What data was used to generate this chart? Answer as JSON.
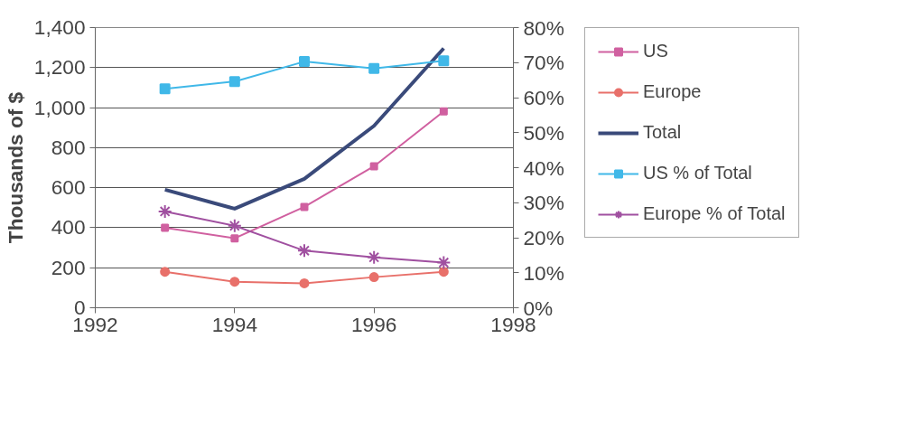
{
  "chart_data": {
    "type": "line",
    "ylabel": "Thousands of $",
    "x": [
      1993,
      1994,
      1995,
      1996,
      1997
    ],
    "xlim": [
      1992,
      1998
    ],
    "xticks": [
      1992,
      1994,
      1996,
      1998
    ],
    "ylim": [
      0,
      1400
    ],
    "yticks": [
      0,
      200,
      400,
      600,
      800,
      {
        "value": 1000,
        "label": "1,000"
      },
      {
        "value": 1200,
        "label": "1,200"
      },
      {
        "value": 1400,
        "label": "1,400"
      }
    ],
    "y2lim": [
      0,
      80
    ],
    "y2ticks": [
      {
        "value": 0,
        "label": "0%"
      },
      {
        "value": 10,
        "label": "10%"
      },
      {
        "value": 20,
        "label": "20%"
      },
      {
        "value": 30,
        "label": "30%"
      },
      {
        "value": 40,
        "label": "40%"
      },
      {
        "value": 50,
        "label": "50%"
      },
      {
        "value": 60,
        "label": "60%"
      },
      {
        "value": 70,
        "label": "70%"
      },
      {
        "value": 80,
        "label": "80%"
      }
    ],
    "grid": "y",
    "legend": "right",
    "series": [
      {
        "name": "US",
        "color": "#d060a0",
        "marker": "square",
        "values": [
          400,
          347,
          504,
          707,
          981
        ]
      },
      {
        "name": "Europe",
        "color": "#e8706a",
        "marker": "circle",
        "values": [
          180,
          130,
          122,
          153,
          180
        ]
      },
      {
        "name": "Total",
        "color": "#3a4a7a",
        "marker": "none",
        "values": [
          590,
          495,
          644,
          909,
          1296
        ]
      },
      {
        "name": "US % of Total",
        "color": "#40b8e8",
        "marker": "square",
        "axis": "y2",
        "values": [
          62.5,
          64.6,
          70.3,
          68.3,
          70.5
        ]
      },
      {
        "name": "Europe % of Total",
        "color": "#a050a0",
        "marker": "cross",
        "axis": "y2",
        "values": [
          27.5,
          23.4,
          16.3,
          14.4,
          12.9
        ]
      }
    ]
  }
}
